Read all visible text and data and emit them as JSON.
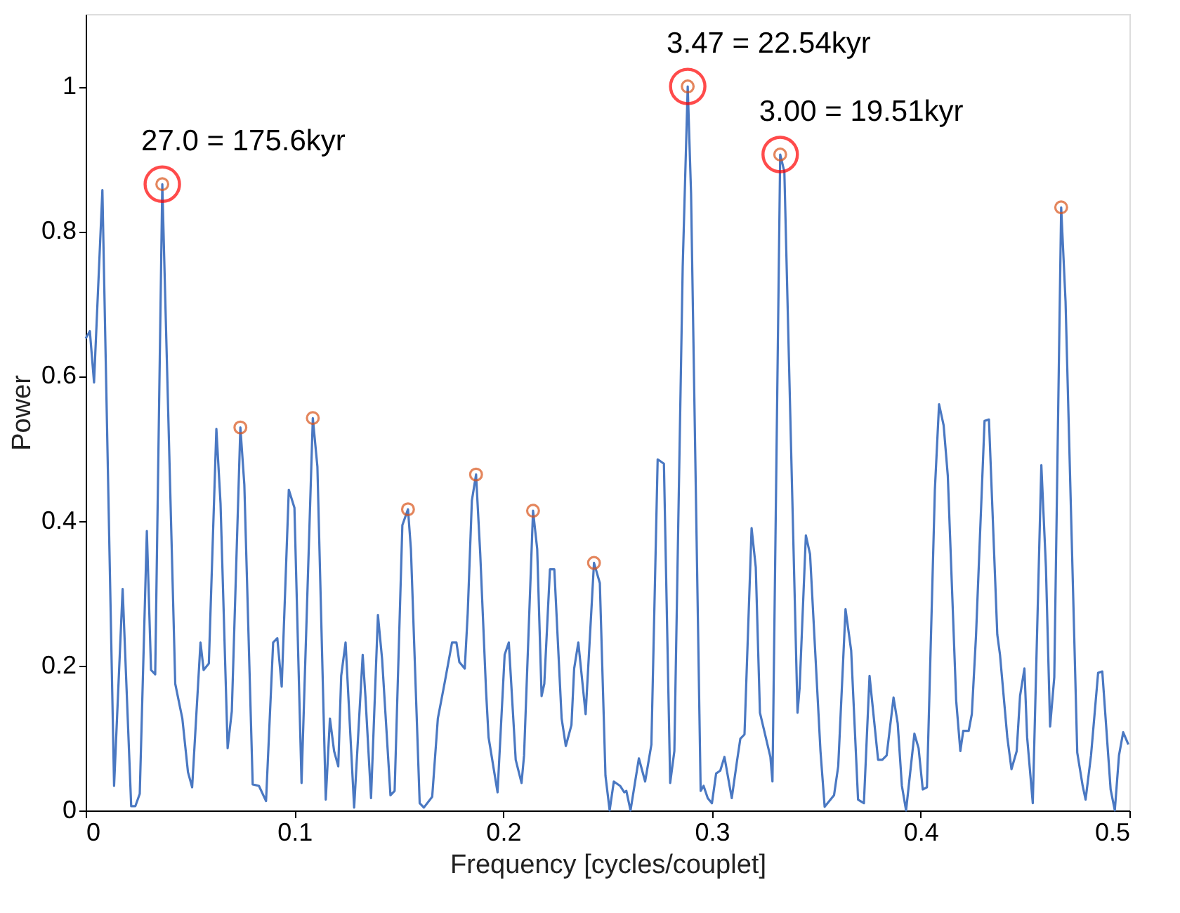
{
  "chart_data": {
    "type": "line",
    "xlabel": "Frequency [cycles/couplet]",
    "ylabel": "Power",
    "xlim": [
      0,
      0.5
    ],
    "xticks": [
      0,
      0.1,
      0.2,
      0.3,
      0.4,
      0.5
    ],
    "ylim": [
      0,
      1.1
    ],
    "yticks": [
      0,
      0.2,
      0.4,
      0.6,
      0.8,
      1
    ],
    "grid": false,
    "series": [
      {
        "type": "line",
        "color": "#4a78c2",
        "marker": "none",
        "line_style": "solid",
        "x": [
          0,
          0.002,
          0.004,
          0.008,
          0.0136,
          0.0177,
          0.0218,
          0.0238,
          0.0259,
          0.0293,
          0.0313,
          0.0333,
          0.0367,
          0.0429,
          0.0463,
          0.049,
          0.051,
          0.055,
          0.0565,
          0.059,
          0.0626,
          0.0646,
          0.068,
          0.07,
          0.0741,
          0.076,
          0.08,
          0.083,
          0.0864,
          0.0898,
          0.0918,
          0.0939,
          0.0973,
          0.1,
          0.1034,
          0.1088,
          0.111,
          0.115,
          0.117,
          0.119,
          0.121,
          0.1224,
          0.1245,
          0.1286,
          0.1327,
          0.134,
          0.1367,
          0.14,
          0.142,
          0.146,
          0.148,
          0.1517,
          0.1544,
          0.1558,
          0.16,
          0.162,
          0.166,
          0.1687,
          0.172,
          0.1755,
          0.1776,
          0.179,
          0.1816,
          0.183,
          0.185,
          0.187,
          0.189,
          0.1918,
          0.193,
          0.1973,
          0.2007,
          0.2027,
          0.206,
          0.2088,
          0.21,
          0.2143,
          0.2163,
          0.2184,
          0.2197,
          0.2224,
          0.2245,
          0.228,
          0.23,
          0.2327,
          0.234,
          0.236,
          0.2395,
          0.2435,
          0.2463,
          0.249,
          0.251,
          0.253,
          0.256,
          0.258,
          0.259,
          0.261,
          0.265,
          0.268,
          0.271,
          0.274,
          0.277,
          0.28,
          0.282,
          0.286,
          0.2884,
          0.29,
          0.2946,
          0.296,
          0.298,
          0.3,
          0.302,
          0.304,
          0.306,
          0.3095,
          0.312,
          0.3136,
          0.3156,
          0.319,
          0.321,
          0.323,
          0.328,
          0.329,
          0.3327,
          0.3347,
          0.341,
          0.342,
          0.345,
          0.347,
          0.352,
          0.354,
          0.3585,
          0.3605,
          0.364,
          0.3667,
          0.37,
          0.3728,
          0.3755,
          0.3796,
          0.3816,
          0.3837,
          0.387,
          0.389,
          0.391,
          0.393,
          0.397,
          0.399,
          0.401,
          0.403,
          0.4068,
          0.4088,
          0.411,
          0.413,
          0.417,
          0.419,
          0.4204,
          0.423,
          0.4245,
          0.4265,
          0.4306,
          0.4327,
          0.4367,
          0.438,
          0.4415,
          0.4435,
          0.446,
          0.4476,
          0.4497,
          0.451,
          0.4537,
          0.4578,
          0.46,
          0.462,
          0.464,
          0.4673,
          0.4694,
          0.475,
          0.4776,
          0.479,
          0.4816,
          0.485,
          0.487,
          0.491,
          0.493,
          0.495,
          0.497,
          0.4995
        ],
        "values": [
          0.652,
          0.662,
          0.591,
          0.857,
          0.034,
          0.306,
          0.006,
          0.006,
          0.023,
          0.386,
          0.194,
          0.188,
          0.865,
          0.175,
          0.127,
          0.053,
          0.032,
          0.232,
          0.194,
          0.203,
          0.527,
          0.424,
          0.086,
          0.137,
          0.529,
          0.45,
          0.036,
          0.034,
          0.013,
          0.232,
          0.238,
          0.171,
          0.443,
          0.418,
          0.038,
          0.542,
          0.475,
          0.015,
          0.127,
          0.082,
          0.061,
          0.186,
          0.232,
          0.004,
          0.215,
          0.158,
          0.017,
          0.27,
          0.209,
          0.021,
          0.027,
          0.394,
          0.416,
          0.361,
          0.01,
          0.004,
          0.019,
          0.127,
          0.177,
          0.232,
          0.232,
          0.205,
          0.196,
          0.272,
          0.428,
          0.464,
          0.355,
          0.165,
          0.101,
          0.025,
          0.215,
          0.232,
          0.07,
          0.038,
          0.076,
          0.414,
          0.361,
          0.158,
          0.175,
          0.333,
          0.333,
          0.127,
          0.089,
          0.118,
          0.196,
          0.232,
          0.133,
          0.342,
          0.314,
          0.048,
          0.0,
          0.04,
          0.034,
          0.025,
          0.027,
          0.0,
          0.072,
          0.04,
          0.091,
          0.485,
          0.479,
          0.038,
          0.082,
          0.751,
          1.0,
          0.852,
          0.027,
          0.034,
          0.017,
          0.01,
          0.051,
          0.055,
          0.074,
          0.017,
          0.068,
          0.099,
          0.105,
          0.39,
          0.336,
          0.135,
          0.074,
          0.04,
          0.906,
          0.882,
          0.135,
          0.169,
          0.38,
          0.354,
          0.082,
          0.005,
          0.021,
          0.061,
          0.278,
          0.221,
          0.015,
          0.01,
          0.186,
          0.07,
          0.07,
          0.076,
          0.156,
          0.12,
          0.034,
          0.0,
          0.106,
          0.086,
          0.029,
          0.032,
          0.443,
          0.561,
          0.532,
          0.462,
          0.152,
          0.082,
          0.11,
          0.11,
          0.133,
          0.241,
          0.538,
          0.54,
          0.243,
          0.215,
          0.101,
          0.057,
          0.082,
          0.158,
          0.196,
          0.101,
          0.01,
          0.477,
          0.336,
          0.116,
          0.184,
          0.833,
          0.703,
          0.08,
          0.034,
          0.015,
          0.076,
          0.19,
          0.192,
          0.029,
          0.0,
          0.076,
          0.108,
          0.091
        ]
      },
      {
        "type": "scatter",
        "color": "#d95319",
        "marker": "circle",
        "x": [
          0.0367,
          0.0741,
          0.1088,
          0.1544,
          0.187,
          0.2143,
          0.2435,
          0.2884,
          0.3327,
          0.4673
        ],
        "values": [
          0.865,
          0.529,
          0.542,
          0.416,
          0.464,
          0.414,
          0.342,
          1.0,
          0.906,
          0.833
        ]
      },
      {
        "type": "scatter",
        "color": "#ff0000",
        "marker": "circle",
        "x": [
          0.0367,
          0.2884,
          0.3327
        ],
        "values": [
          0.865,
          1.0,
          0.906
        ]
      }
    ],
    "annotations": [
      {
        "text": "27.0 = 175.6kyr",
        "x": 0.0367,
        "y": 0.865
      },
      {
        "text": "3.47 = 22.54kyr",
        "x": 0.2884,
        "y": 1.0
      },
      {
        "text": "3.00 = 19.51kyr",
        "x": 0.3327,
        "y": 0.906
      }
    ]
  }
}
